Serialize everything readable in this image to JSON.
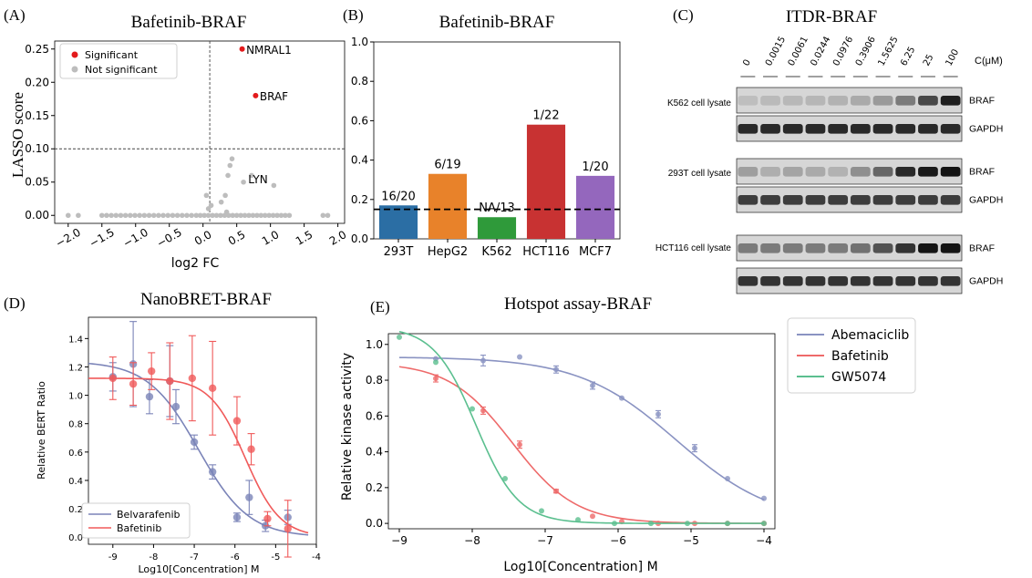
{
  "chart_data": [
    {
      "panel": "(A)",
      "type": "scatter",
      "title": "Bafetinib-BRAF",
      "xlabel": "log2 FC",
      "ylabel": "LASSO score",
      "xlim": [
        -2.2,
        2.1
      ],
      "ylim": [
        -0.012,
        0.262
      ],
      "xticks": [
        -2.0,
        -1.5,
        -1.0,
        -0.5,
        0.0,
        0.5,
        1.0,
        1.5,
        2.0
      ],
      "xtick_labels": [
        "−2.0",
        "−1.5",
        "−1.0",
        "−0.5",
        "0.0",
        "0.5",
        "1.0",
        "1.5",
        "2.0"
      ],
      "yticks": [
        0.0,
        0.05,
        0.1,
        0.15,
        0.2,
        0.25
      ],
      "ytick_labels": [
        "0.00",
        "0.05",
        "0.10",
        "0.15",
        "0.20",
        "0.25"
      ],
      "vline_x": 0.1,
      "hline_y": 0.1,
      "legend_position": "top-left",
      "colors": {
        "significant": "#e31a1c",
        "not_significant": "#bdbdbd"
      },
      "series": [
        {
          "name": "Significant",
          "points": [
            [
              0.58,
              0.25
            ],
            [
              0.78,
              0.18
            ]
          ]
        },
        {
          "name": "Not significant",
          "points": [
            [
              -2.0,
              0.0
            ],
            [
              -1.85,
              0.0
            ],
            [
              -1.5,
              0.0
            ],
            [
              -1.43,
              0.0
            ],
            [
              -1.36,
              0.0
            ],
            [
              -1.29,
              0.0
            ],
            [
              -1.22,
              0.0
            ],
            [
              -1.15,
              0.0
            ],
            [
              -1.08,
              0.0
            ],
            [
              -1.01,
              0.0
            ],
            [
              -0.94,
              0.0
            ],
            [
              -0.87,
              0.0
            ],
            [
              -0.8,
              0.0
            ],
            [
              -0.73,
              0.0
            ],
            [
              -0.66,
              0.0
            ],
            [
              -0.59,
              0.0
            ],
            [
              -0.52,
              0.0
            ],
            [
              -0.45,
              0.0
            ],
            [
              -0.38,
              0.0
            ],
            [
              -0.31,
              0.0
            ],
            [
              -0.24,
              0.0
            ],
            [
              -0.17,
              0.0
            ],
            [
              -0.1,
              0.0
            ],
            [
              -0.04,
              0.0
            ],
            [
              0.02,
              0.0
            ],
            [
              0.08,
              0.0
            ],
            [
              0.14,
              0.0
            ],
            [
              0.2,
              0.0
            ],
            [
              0.26,
              0.0
            ],
            [
              0.32,
              0.0
            ],
            [
              0.38,
              0.0
            ],
            [
              0.44,
              0.0
            ],
            [
              0.5,
              0.0
            ],
            [
              0.56,
              0.0
            ],
            [
              0.62,
              0.0
            ],
            [
              0.68,
              0.0
            ],
            [
              0.74,
              0.0
            ],
            [
              0.8,
              0.0
            ],
            [
              0.86,
              0.0
            ],
            [
              0.92,
              0.0
            ],
            [
              0.98,
              0.0
            ],
            [
              1.04,
              0.0
            ],
            [
              1.1,
              0.0
            ],
            [
              1.16,
              0.0
            ],
            [
              1.22,
              0.0
            ],
            [
              1.28,
              0.0
            ],
            [
              1.78,
              0.0
            ],
            [
              1.85,
              0.0
            ],
            [
              0.08,
              0.01
            ],
            [
              0.12,
              0.015
            ],
            [
              0.05,
              0.03
            ],
            [
              0.27,
              0.02
            ],
            [
              0.33,
              0.03
            ],
            [
              0.37,
              0.06
            ],
            [
              0.4,
              0.075
            ],
            [
              0.43,
              0.085
            ],
            [
              0.6,
              0.05
            ],
            [
              0.72,
              0.06
            ],
            [
              1.05,
              0.045
            ],
            [
              0.35,
              0.005
            ]
          ]
        }
      ],
      "annotations": [
        {
          "text": "NMRAL1",
          "x": 0.6,
          "y": 0.25
        },
        {
          "text": "BRAF",
          "x": 0.8,
          "y": 0.18
        },
        {
          "text": "LYN",
          "x": 0.63,
          "y": 0.055
        }
      ]
    },
    {
      "panel": "(B)",
      "type": "bar",
      "title": "Bafetinib-BRAF",
      "categories": [
        "293T",
        "HepG2",
        "K562",
        "HCT116",
        "MCF7"
      ],
      "values": [
        0.17,
        0.33,
        0.11,
        0.58,
        0.32
      ],
      "bar_labels": [
        "16/20",
        "6/19",
        "NA/13",
        "1/22",
        "1/20"
      ],
      "colors": [
        "#2b6ea4",
        "#e8822a",
        "#2f9a3a",
        "#c83232",
        "#9467bd"
      ],
      "ylim": [
        0,
        1.0
      ],
      "yticks": [
        0.0,
        0.2,
        0.4,
        0.6,
        0.8,
        1.0
      ],
      "ytick_labels": [
        "0.0",
        "0.2",
        "0.4",
        "0.6",
        "0.8",
        "1.0"
      ],
      "threshold_y": 0.15
    },
    {
      "panel": "(D)",
      "type": "line",
      "title": "NanoBRET-BRAF",
      "xlabel": "Log10[Concentration] M",
      "ylabel": "Relative BERT Ratio",
      "xlim": [
        -9.6,
        -4.0
      ],
      "ylim": [
        -0.05,
        1.55
      ],
      "xticks": [
        -9,
        -8,
        -7,
        -6,
        -5,
        -4
      ],
      "xtick_labels": [
        "-9",
        "-8",
        "-7",
        "-6",
        "-5",
        "-4"
      ],
      "yticks": [
        0.0,
        0.2,
        0.4,
        0.6,
        0.8,
        1.0,
        1.2,
        1.4
      ],
      "ytick_labels": [
        "0.0",
        "0.2",
        "0.4",
        "0.6",
        "0.8",
        "1.0",
        "1.2",
        "1.4"
      ],
      "legend_position": "bottom-left",
      "series": [
        {
          "name": "Belvarafenib",
          "color": "#7b84b8",
          "fit": {
            "top": 1.24,
            "bottom": 0.0,
            "logIC50": -6.9,
            "hill": 0.7,
            "x_from": -9.6,
            "x_to": -4.2
          },
          "points": [
            [
              -9.0,
              1.13,
              0.1
            ],
            [
              -8.5,
              1.22,
              0.3
            ],
            [
              -8.1,
              0.99,
              0.12
            ],
            [
              -7.6,
              1.1,
              0.25
            ],
            [
              -7.45,
              0.92,
              0.12
            ],
            [
              -7.0,
              0.67,
              0.05
            ],
            [
              -6.55,
              0.46,
              0.05
            ],
            [
              -5.95,
              0.14,
              0.03
            ],
            [
              -5.65,
              0.28,
              0.12
            ],
            [
              -5.25,
              0.08,
              0.04
            ],
            [
              -4.7,
              0.14,
              0.05
            ]
          ]
        },
        {
          "name": "Bafetinib",
          "color": "#f05a5a",
          "fit": {
            "top": 1.12,
            "bottom": 0.0,
            "logIC50": -5.75,
            "hill": 1.0,
            "x_from": -9.6,
            "x_to": -4.2
          },
          "points": [
            [
              -9.0,
              1.12,
              0.15
            ],
            [
              -8.5,
              1.08,
              0.15
            ],
            [
              -8.05,
              1.17,
              0.13
            ],
            [
              -7.6,
              1.1,
              0.27
            ],
            [
              -7.05,
              1.12,
              0.3
            ],
            [
              -6.55,
              1.05,
              0.33
            ],
            [
              -5.95,
              0.82,
              0.17
            ],
            [
              -5.6,
              0.62,
              0.11
            ],
            [
              -5.2,
              0.13,
              0.05
            ],
            [
              -4.7,
              0.06,
              0.2
            ]
          ]
        }
      ]
    },
    {
      "panel": "(E)",
      "type": "line",
      "title": "Hotspot assay-BRAF",
      "xlabel": "Log10[Concentration] M",
      "ylabel": "Relative kinase activity",
      "xlim": [
        -9.15,
        -3.85
      ],
      "ylim": [
        -0.03,
        1.06
      ],
      "xticks": [
        -9,
        -8,
        -7,
        -6,
        -5,
        -4
      ],
      "xtick_labels": [
        "−9",
        "−8",
        "−7",
        "−6",
        "−5",
        "−4"
      ],
      "yticks": [
        0.0,
        0.2,
        0.4,
        0.6,
        0.8,
        1.0
      ],
      "ytick_labels": [
        "0.0",
        "0.2",
        "0.4",
        "0.6",
        "0.8",
        "1.0"
      ],
      "legend_position": "outside-right",
      "series": [
        {
          "name": "Abemaciclib",
          "color": "#8a93c2",
          "fit": {
            "top": 0.93,
            "bottom": 0.0,
            "logIC50": -5.2,
            "hill": 0.65,
            "x_from": -9.0,
            "x_to": -4.0
          },
          "points": [
            [
              -8.5,
              0.92,
              0.0
            ],
            [
              -7.85,
              0.91,
              0.03
            ],
            [
              -7.35,
              0.93,
              0.0
            ],
            [
              -6.85,
              0.86,
              0.02
            ],
            [
              -6.35,
              0.77,
              0.02
            ],
            [
              -5.95,
              0.7,
              0.0
            ],
            [
              -5.45,
              0.61,
              0.02
            ],
            [
              -4.95,
              0.42,
              0.02
            ],
            [
              -4.5,
              0.25,
              0.0
            ],
            [
              -4.0,
              0.14,
              0.0
            ]
          ]
        },
        {
          "name": "Bafetinib",
          "color": "#ee6a6a",
          "fit": {
            "top": 0.9,
            "bottom": 0.0,
            "logIC50": -7.45,
            "hill": 1.0,
            "x_from": -9.0,
            "x_to": -4.0
          },
          "points": [
            [
              -8.5,
              0.81,
              0.02
            ],
            [
              -7.85,
              0.63,
              0.02
            ],
            [
              -7.35,
              0.44,
              0.02
            ],
            [
              -6.85,
              0.18,
              0.01
            ],
            [
              -6.35,
              0.04,
              0.0
            ],
            [
              -5.95,
              0.01,
              0.0
            ],
            [
              -5.45,
              0.0,
              0.0
            ],
            [
              -4.95,
              0.0,
              0.0
            ],
            [
              -4.5,
              0.0,
              0.0
            ],
            [
              -4.0,
              0.0,
              0.0
            ]
          ]
        },
        {
          "name": "GW5074",
          "color": "#5bbf8f",
          "fit": {
            "top": 1.1,
            "bottom": 0.0,
            "logIC50": -7.95,
            "hill": 1.5,
            "x_from": -9.0,
            "x_to": -4.0
          },
          "points": [
            [
              -9.0,
              1.04,
              0.0
            ],
            [
              -8.5,
              0.9,
              0.0
            ],
            [
              -8.0,
              0.64,
              0.0
            ],
            [
              -7.55,
              0.25,
              0.0
            ],
            [
              -7.05,
              0.07,
              0.0
            ],
            [
              -6.55,
              0.02,
              0.0
            ],
            [
              -6.05,
              0.0,
              0.0
            ],
            [
              -5.55,
              0.0,
              0.0
            ],
            [
              -5.05,
              0.0,
              0.0
            ],
            [
              -4.5,
              0.0,
              0.0
            ],
            [
              -4.0,
              0.0,
              0.0
            ]
          ]
        }
      ]
    }
  ],
  "blot": {
    "panel": "(C)",
    "title": "ITDR-BRAF",
    "unit": "C(μM)",
    "concentrations": [
      "0",
      "0.0015",
      "0.0061",
      "0.0244",
      "0.0976",
      "0.3906",
      "1.5625",
      "6.25",
      "25",
      "100"
    ],
    "groups": [
      {
        "label": "K562 cell lysate",
        "bands": [
          {
            "name": "BRAF",
            "intensities": [
              0.12,
              0.14,
              0.15,
              0.16,
              0.18,
              0.22,
              0.3,
              0.45,
              0.7,
              0.9
            ]
          },
          {
            "name": "GAPDH",
            "intensities": [
              0.85,
              0.85,
              0.85,
              0.85,
              0.85,
              0.85,
              0.85,
              0.85,
              0.85,
              0.85
            ]
          }
        ]
      },
      {
        "label": "293T cell lysate",
        "bands": [
          {
            "name": "BRAF",
            "intensities": [
              0.28,
              0.2,
              0.25,
              0.22,
              0.18,
              0.35,
              0.55,
              0.85,
              0.92,
              0.95
            ]
          },
          {
            "name": "GAPDH",
            "intensities": [
              0.75,
              0.75,
              0.75,
              0.75,
              0.75,
              0.75,
              0.75,
              0.75,
              0.75,
              0.75
            ]
          }
        ]
      },
      {
        "label": "HCT116 cell lysate",
        "bands": [
          {
            "name": "BRAF",
            "intensities": [
              0.45,
              0.45,
              0.45,
              0.45,
              0.45,
              0.5,
              0.65,
              0.8,
              0.95,
              0.95
            ]
          },
          {
            "name": "GAPDH",
            "intensities": [
              0.8,
              0.8,
              0.8,
              0.8,
              0.8,
              0.8,
              0.8,
              0.8,
              0.8,
              0.8
            ]
          }
        ]
      }
    ]
  }
}
